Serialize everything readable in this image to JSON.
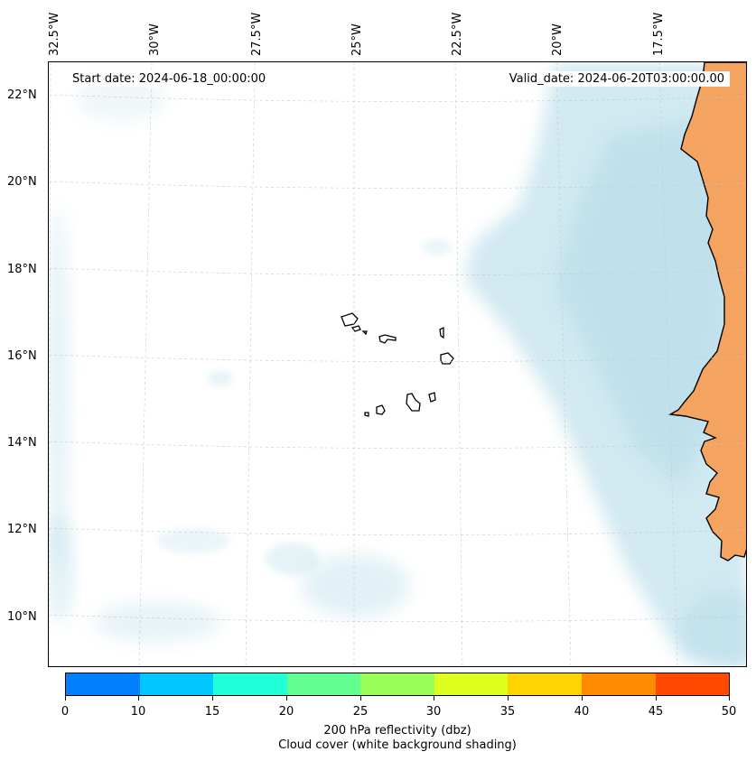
{
  "map": {
    "start_date": "Start date: 2024-06-18_00:00:00",
    "valid_date": "Valid_date: 2024-06-20T03:00:00.00",
    "lon_labels": [
      "32.5°W",
      "30°W",
      "27.5°W",
      "25°W",
      "22.5°W",
      "20°W",
      "17.5°W"
    ],
    "lat_labels": [
      "22°N",
      "20°N",
      "18°N",
      "16°N",
      "14°N",
      "12°N",
      "10°N"
    ],
    "colors": {
      "cloud": "#add8e6",
      "land": "#f4a460",
      "gridline": "#c8c8c8",
      "coast": "#000000"
    }
  },
  "colorbar": {
    "ticks": [
      "0",
      "10",
      "15",
      "20",
      "25",
      "30",
      "35",
      "40",
      "45",
      "50"
    ],
    "colors": [
      "#0080ff",
      "#00c8ff",
      "#20ffd8",
      "#60ff90",
      "#98ff58",
      "#dcff20",
      "#ffd400",
      "#ff8c00",
      "#ff4a00"
    ],
    "label_line1": "200 hPa reflectivity (dbz)",
    "label_line2": "Cloud cover (white background shading)"
  }
}
